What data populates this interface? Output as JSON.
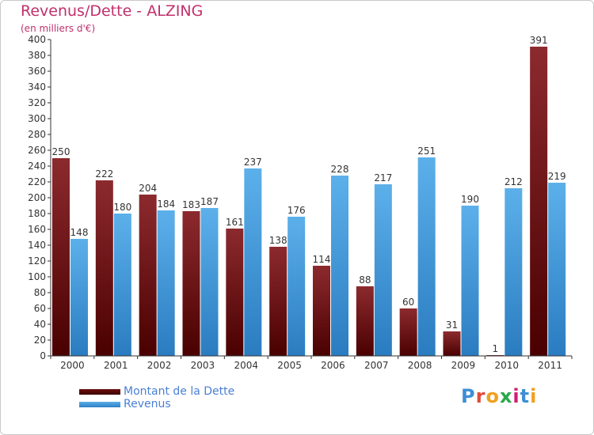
{
  "chart_data": {
    "type": "bar",
    "title": "Revenus/Dette - ALZING",
    "subtitle": "(en milliers d'€)",
    "categories": [
      "2000",
      "2001",
      "2002",
      "2003",
      "2004",
      "2005",
      "2006",
      "2007",
      "2008",
      "2009",
      "2010",
      "2011"
    ],
    "series": [
      {
        "name": "Montant de la Dette",
        "color": "#8b1a1a",
        "values": [
          250,
          222,
          204,
          183,
          161,
          138,
          114,
          88,
          60,
          31,
          1,
          391
        ]
      },
      {
        "name": "Revenus",
        "color": "#3d97dc",
        "values": [
          148,
          180,
          184,
          187,
          237,
          176,
          228,
          217,
          251,
          190,
          212,
          219
        ]
      }
    ],
    "ylim": [
      0,
      400
    ],
    "ytick_step": 20,
    "grid": false,
    "legend_position": "bottom-left"
  },
  "branding": {
    "logo_text": "Proxiti",
    "letter_colors": [
      "#3d8fd6",
      "#e24a3c",
      "#f0a020",
      "#2aa84a",
      "#d02070",
      "#3d8fd6",
      "#f0a020"
    ]
  }
}
